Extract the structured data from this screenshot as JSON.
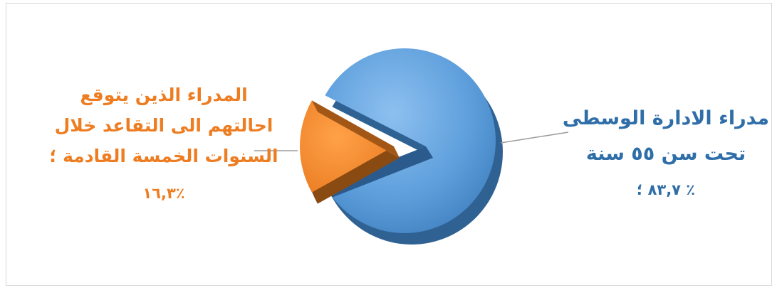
{
  "chart_data": {
    "type": "pie",
    "slices": [
      {
        "label_lines": [
          "مدراء الادارة الوسطى",
          "تحت سن ٥٥ سنة"
        ],
        "value_text": "٪ ٨٣,٧ ؛",
        "value": 83.7,
        "color": "#5b9bd5"
      },
      {
        "label_lines": [
          "المدراء الذين يتوقع",
          "احالتهم الى التقاعد خلال",
          "السنوات الخمسة القادمة ؛"
        ],
        "value_text": "٪١٦,٣",
        "value": 16.3,
        "color": "#f08a2c"
      }
    ]
  }
}
